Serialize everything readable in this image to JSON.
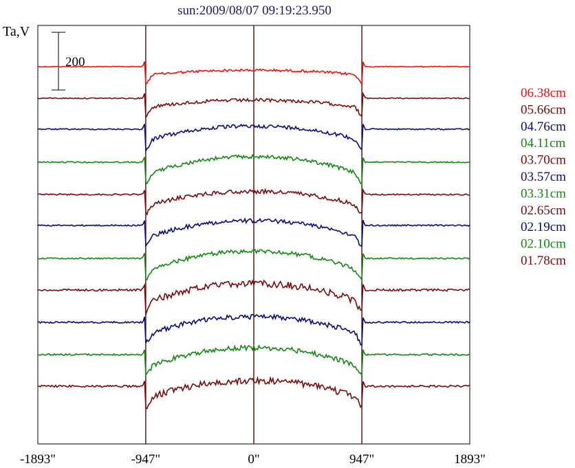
{
  "chart_data": {
    "type": "line",
    "title": "sun:2009/08/07 09:19:23.950",
    "ylabel": "Ta,V",
    "xlabel": "",
    "xlim": [
      -1893,
      1893
    ],
    "x_ticks": [
      {
        "value": -1893,
        "label": "-1893\""
      },
      {
        "value": -947,
        "label": "-947\""
      },
      {
        "value": 0,
        "label": "0\""
      },
      {
        "value": 947,
        "label": "947\""
      },
      {
        "value": 1893,
        "label": "1893\""
      }
    ],
    "vlines": [
      -947,
      0,
      947
    ],
    "scale_bar": {
      "value": 200,
      "label": "200"
    },
    "grid": false,
    "legend_position": "right",
    "series": [
      {
        "name": "06.38cm",
        "color": "#ee1111",
        "baseline": 97,
        "amp": 8,
        "noise": 1.2
      },
      {
        "name": "05.66cm",
        "color": "#7a0a0a",
        "baseline": 143,
        "amp": 12,
        "noise": 1.6
      },
      {
        "name": "04.76cm",
        "color": "#0a0a80",
        "baseline": 188,
        "amp": 24,
        "noise": 1.8
      },
      {
        "name": "04.11cm",
        "color": "#118811",
        "baseline": 236,
        "amp": 30,
        "noise": 1.8
      },
      {
        "name": "03.70cm",
        "color": "#7a0a0a",
        "baseline": 283,
        "amp": 24,
        "noise": 2.0
      },
      {
        "name": "03.57cm",
        "color": "#0a0a80",
        "baseline": 328,
        "amp": 28,
        "noise": 2.0
      },
      {
        "name": "03.31cm",
        "color": "#118811",
        "baseline": 376,
        "amp": 34,
        "noise": 2.0
      },
      {
        "name": "02.65cm",
        "color": "#7a0a0a",
        "baseline": 422,
        "amp": 32,
        "noise": 3.2
      },
      {
        "name": "02.19cm",
        "color": "#0a0a80",
        "baseline": 469,
        "amp": 30,
        "noise": 2.4
      },
      {
        "name": "02.10cm",
        "color": "#118811",
        "baseline": 516,
        "amp": 33,
        "noise": 2.4
      },
      {
        "name": "01.78cm",
        "color": "#7a0a0a",
        "baseline": 562,
        "amp": 30,
        "noise": 3.0
      }
    ]
  }
}
